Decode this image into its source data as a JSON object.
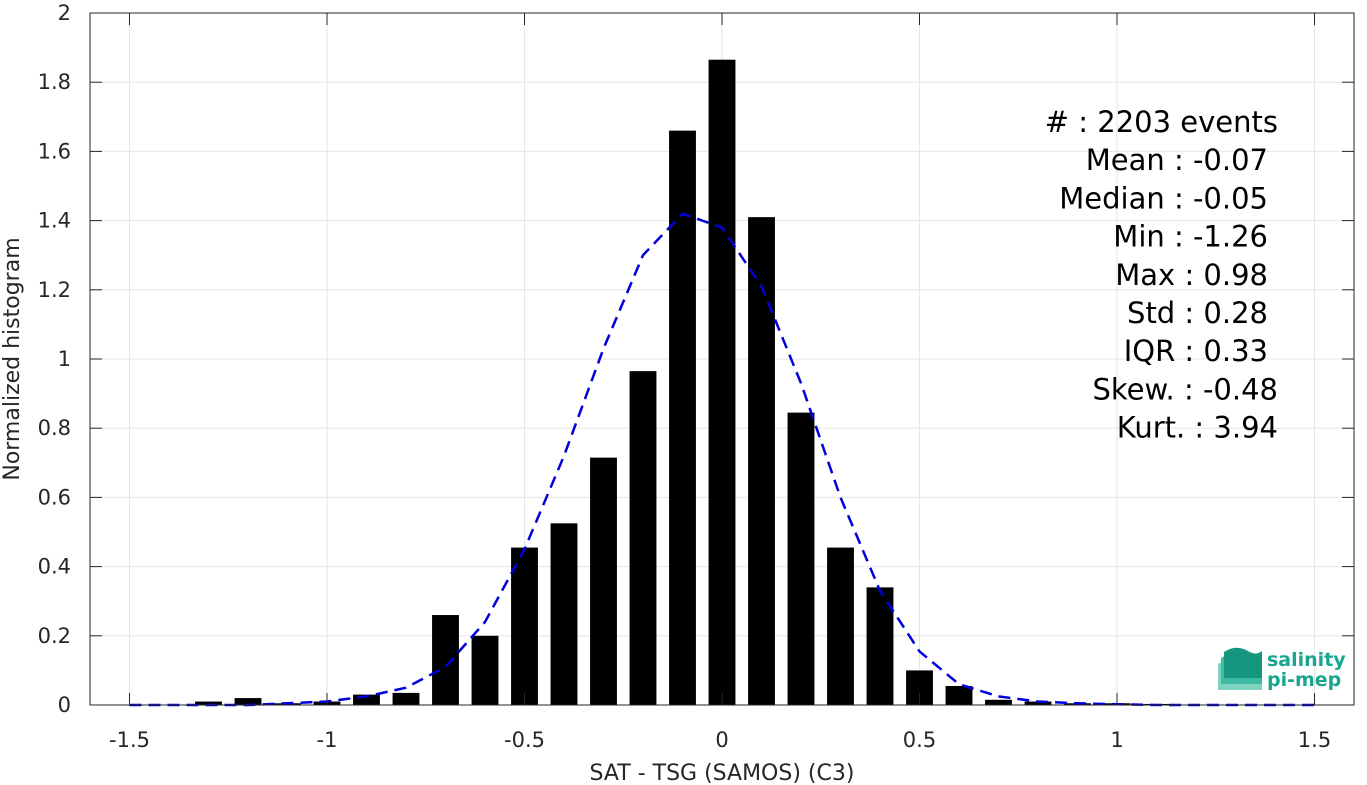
{
  "chart_data": {
    "type": "bar",
    "xlabel": "SAT - TSG (SAMOS) (C3)",
    "ylabel": "Normalized histogram",
    "xlim": [
      -1.6,
      1.6
    ],
    "ylim": [
      0,
      2
    ],
    "x_ticks": [
      -1.5,
      -1,
      -0.5,
      0,
      0.5,
      1,
      1.5
    ],
    "x_tick_labels": [
      "-1.5",
      "-1",
      "-0.5",
      "0",
      "0.5",
      "1",
      "1.5"
    ],
    "y_ticks": [
      0,
      0.2,
      0.4,
      0.6,
      0.8,
      1,
      1.2,
      1.4,
      1.6,
      1.8,
      2
    ],
    "y_tick_labels": [
      "0",
      "0.2",
      "0.4",
      "0.6",
      "0.8",
      "1",
      "1.2",
      "1.4",
      "1.6",
      "1.8",
      "2"
    ],
    "grid": true,
    "bar_color": "#000000",
    "fit_color": "#0000dd",
    "bars": {
      "x": [
        -1.5,
        -1.4,
        -1.3,
        -1.2,
        -1.1,
        -1.0,
        -0.9,
        -0.8,
        -0.7,
        -0.6,
        -0.5,
        -0.4,
        -0.3,
        -0.2,
        -0.1,
        0.0,
        0.1,
        0.2,
        0.3,
        0.4,
        0.5,
        0.6,
        0.7,
        0.8,
        0.9,
        1.0,
        1.1,
        1.2,
        1.3,
        1.4,
        1.5
      ],
      "values": [
        0,
        0,
        0.01,
        0.02,
        0.005,
        0.01,
        0.03,
        0.035,
        0.26,
        0.2,
        0.455,
        0.525,
        0.715,
        0.965,
        1.66,
        1.865,
        1.41,
        0.845,
        0.455,
        0.34,
        0.1,
        0.055,
        0.015,
        0.01,
        0.005,
        0.005,
        0.003,
        0,
        0,
        0,
        0
      ]
    },
    "fit": {
      "name": "",
      "x": [
        -1.5,
        -1.4,
        -1.3,
        -1.2,
        -1.1,
        -1.0,
        -0.9,
        -0.8,
        -0.7,
        -0.6,
        -0.5,
        -0.4,
        -0.3,
        -0.2,
        -0.1,
        0.0,
        0.1,
        0.2,
        0.3,
        0.4,
        0.5,
        0.6,
        0.7,
        0.8,
        0.9,
        1.0,
        1.1,
        1.2,
        1.3,
        1.4,
        1.5
      ],
      "y": [
        0,
        0,
        0,
        0,
        0.005,
        0.01,
        0.025,
        0.05,
        0.11,
        0.24,
        0.45,
        0.72,
        1.03,
        1.3,
        1.42,
        1.38,
        1.21,
        0.93,
        0.6,
        0.33,
        0.155,
        0.06,
        0.025,
        0.01,
        0.005,
        0.002,
        0,
        0,
        0,
        0,
        0
      ]
    },
    "annotations": [
      "#  : 2203 events",
      "Mean : -0.07",
      "Median : -0.05",
      "Min : -1.26",
      "Max : 0.98",
      "Std : 0.28",
      "IQR : 0.33",
      "Skew. : -0.48",
      "Kurt. : 3.94"
    ]
  },
  "logo": {
    "line1": "salinity",
    "line2": "pi-mep",
    "color": "#1aa590"
  }
}
